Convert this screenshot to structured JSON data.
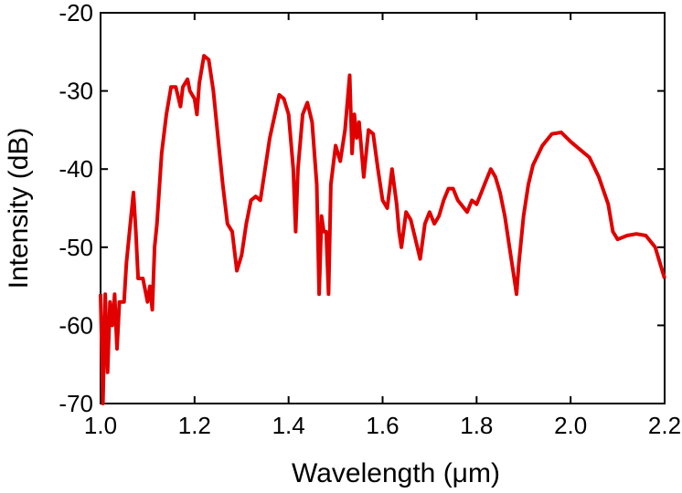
{
  "chart_data": {
    "type": "line",
    "title": "",
    "xlabel": "Wavelength (μm)",
    "ylabel": "Intensity (dB)",
    "xlim": [
      1.0,
      2.2
    ],
    "ylim": [
      -70,
      -20
    ],
    "xticks": [
      "1.0",
      "1.2",
      "1.4",
      "1.6",
      "1.8",
      "2.0",
      "2.2"
    ],
    "yticks": [
      "-20",
      "-30",
      "-40",
      "-50",
      "-60",
      "-70"
    ],
    "grid": false,
    "line_color": "#e00000",
    "series": [
      {
        "x": [
          1.0,
          1.005,
          1.01,
          1.015,
          1.02,
          1.025,
          1.03,
          1.035,
          1.04,
          1.05,
          1.055,
          1.065,
          1.07,
          1.075,
          1.08,
          1.09,
          1.1,
          1.105,
          1.11,
          1.115,
          1.12,
          1.13,
          1.14,
          1.15,
          1.16,
          1.17,
          1.175,
          1.185,
          1.19,
          1.2,
          1.205,
          1.21,
          1.22,
          1.23,
          1.24,
          1.25,
          1.26,
          1.27,
          1.28,
          1.29,
          1.3,
          1.31,
          1.32,
          1.33,
          1.34,
          1.36,
          1.38,
          1.39,
          1.4,
          1.41,
          1.415,
          1.42,
          1.43,
          1.44,
          1.45,
          1.46,
          1.465,
          1.47,
          1.475,
          1.48,
          1.485,
          1.49,
          1.5,
          1.51,
          1.52,
          1.53,
          1.535,
          1.54,
          1.545,
          1.55,
          1.56,
          1.57,
          1.58,
          1.59,
          1.6,
          1.61,
          1.62,
          1.63,
          1.635,
          1.64,
          1.65,
          1.66,
          1.67,
          1.68,
          1.69,
          1.7,
          1.71,
          1.72,
          1.73,
          1.74,
          1.75,
          1.76,
          1.78,
          1.79,
          1.8,
          1.81,
          1.82,
          1.83,
          1.84,
          1.85,
          1.86,
          1.87,
          1.88,
          1.885,
          1.89,
          1.9,
          1.91,
          1.92,
          1.94,
          1.96,
          1.98,
          2.0,
          2.04,
          2.06,
          2.08,
          2.09,
          2.1,
          2.12,
          2.14,
          2.16,
          2.18,
          2.2
        ],
        "y": [
          -56,
          -70,
          -56,
          -66,
          -57,
          -60,
          -56,
          -63,
          -57,
          -57,
          -52,
          -46,
          -43,
          -48,
          -54,
          -54,
          -57,
          -55,
          -58,
          -50,
          -47,
          -38,
          -33,
          -29.5,
          -29.5,
          -32,
          -29.5,
          -28.5,
          -30,
          -31,
          -33,
          -29,
          -25.5,
          -26,
          -30,
          -36,
          -42,
          -47,
          -48,
          -53,
          -51,
          -47,
          -44,
          -43.5,
          -44,
          -36,
          -30.5,
          -31,
          -33,
          -40,
          -48,
          -40,
          -33,
          -31.5,
          -34,
          -42,
          -56,
          -46,
          -48,
          -48,
          -56,
          -42,
          -37,
          -39,
          -35,
          -28,
          -38,
          -33,
          -36,
          -34,
          -41,
          -35,
          -35.5,
          -40,
          -44,
          -45,
          -40,
          -44.5,
          -48,
          -50,
          -45.5,
          -46.5,
          -49,
          -51.5,
          -47,
          -45.5,
          -47,
          -46,
          -44,
          -42.5,
          -42.5,
          -44,
          -45.5,
          -44,
          -44.5,
          -43,
          -41.5,
          -40,
          -41,
          -43,
          -46,
          -50,
          -54,
          -56,
          -52,
          -46,
          -42,
          -39.5,
          -37,
          -35.5,
          -35.3,
          -36.5,
          -38.5,
          -41,
          -44.5,
          -48,
          -49,
          -48.5,
          -48.3,
          -48.5,
          -50,
          -54
        ]
      }
    ]
  }
}
